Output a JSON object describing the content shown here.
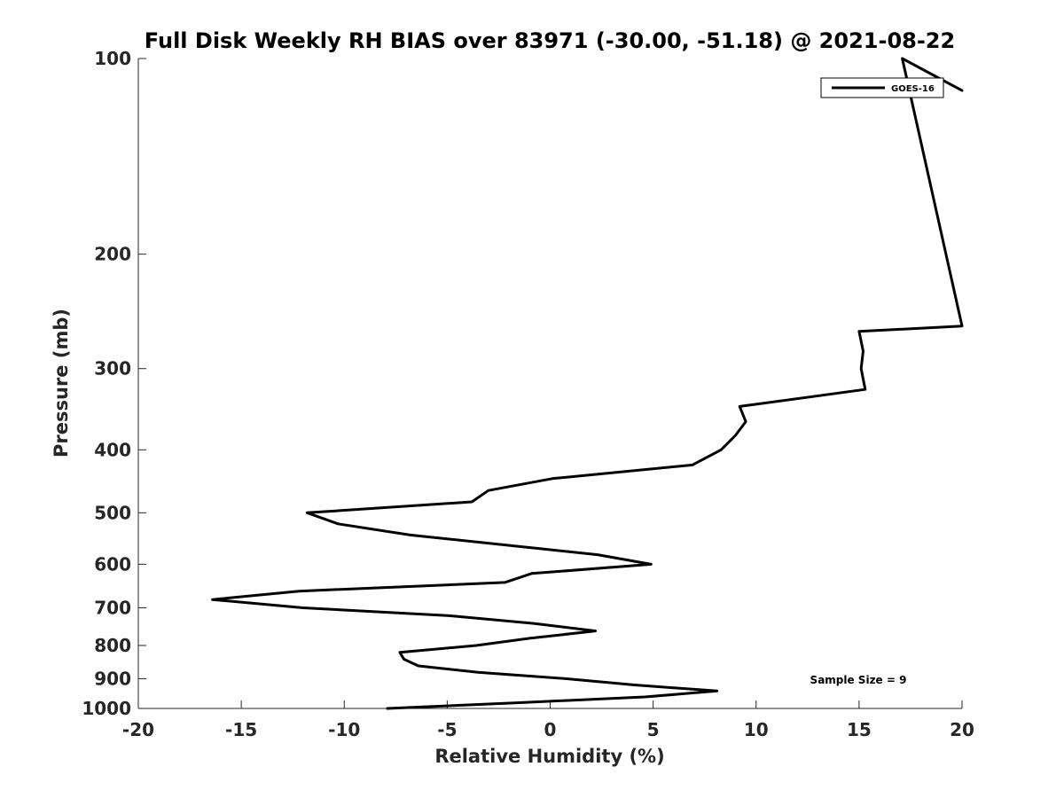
{
  "chart_data": {
    "type": "line",
    "title": "Full Disk Weekly RH BIAS over 83971 (-30.00, -51.18) @ 2021-08-22",
    "xlabel": "Relative Humidity (%)",
    "ylabel": "Pressure (mb)",
    "xlim": [
      -20,
      20
    ],
    "ylim": [
      1000,
      100
    ],
    "y_scale": "log",
    "x_ticks": [
      "-20",
      "-15",
      "-10",
      "-5",
      "0",
      "5",
      "10",
      "15",
      "20"
    ],
    "y_ticks": [
      "100",
      "200",
      "300",
      "400",
      "500",
      "600",
      "700",
      "800",
      "900",
      "1000"
    ],
    "grid": false,
    "legend_position": "top-right",
    "annotation": "Sample Size = 9",
    "series": [
      {
        "name": "GOES-16",
        "color": "#000000",
        "points": [
          {
            "rh": 20.0,
            "p": 112
          },
          {
            "rh": 17.1,
            "p": 100
          },
          {
            "rh": 20.0,
            "p": 258
          },
          {
            "rh": 15.0,
            "p": 263
          },
          {
            "rh": 15.2,
            "p": 282
          },
          {
            "rh": 15.1,
            "p": 300
          },
          {
            "rh": 15.3,
            "p": 323
          },
          {
            "rh": 9.2,
            "p": 343
          },
          {
            "rh": 9.5,
            "p": 362
          },
          {
            "rh": 9.0,
            "p": 380
          },
          {
            "rh": 8.3,
            "p": 400
          },
          {
            "rh": 6.9,
            "p": 422
          },
          {
            "rh": 0.1,
            "p": 443
          },
          {
            "rh": -3.0,
            "p": 462
          },
          {
            "rh": -3.8,
            "p": 481
          },
          {
            "rh": -11.8,
            "p": 500
          },
          {
            "rh": -10.3,
            "p": 520
          },
          {
            "rh": -6.8,
            "p": 541
          },
          {
            "rh": 2.3,
            "p": 580
          },
          {
            "rh": 4.9,
            "p": 600
          },
          {
            "rh": -0.9,
            "p": 620
          },
          {
            "rh": -2.2,
            "p": 640
          },
          {
            "rh": -12.2,
            "p": 660
          },
          {
            "rh": -16.4,
            "p": 680
          },
          {
            "rh": -12.0,
            "p": 700
          },
          {
            "rh": -4.9,
            "p": 720
          },
          {
            "rh": -0.8,
            "p": 740
          },
          {
            "rh": 2.2,
            "p": 760
          },
          {
            "rh": -1.0,
            "p": 780
          },
          {
            "rh": -3.6,
            "p": 800
          },
          {
            "rh": -7.3,
            "p": 820
          },
          {
            "rh": -7.1,
            "p": 840
          },
          {
            "rh": -6.4,
            "p": 860
          },
          {
            "rh": -3.5,
            "p": 880
          },
          {
            "rh": 0.8,
            "p": 900
          },
          {
            "rh": 4.1,
            "p": 920
          },
          {
            "rh": 8.1,
            "p": 940
          },
          {
            "rh": 4.6,
            "p": 960
          },
          {
            "rh": -1.6,
            "p": 980
          },
          {
            "rh": -7.9,
            "p": 1000
          }
        ]
      }
    ]
  }
}
